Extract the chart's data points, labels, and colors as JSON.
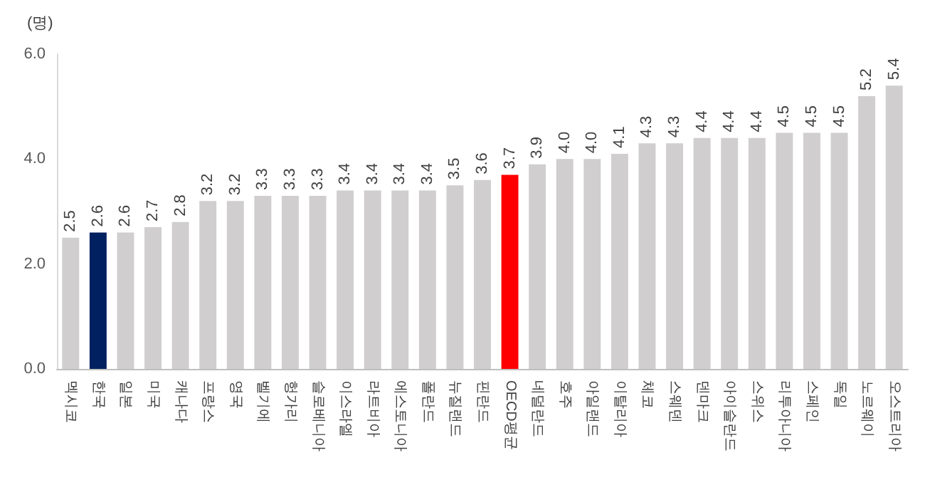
{
  "chart_data": {
    "type": "bar",
    "ylabel": "(명)",
    "categories": [
      "멕시코",
      "한국",
      "일본",
      "미국",
      "캐나다",
      "프랑스",
      "영국",
      "벨기에",
      "헝가리",
      "슬로베니아",
      "이스라엘",
      "라트비아",
      "에스토니아",
      "폴란드",
      "뉴질랜드",
      "핀란드",
      "OECD평균",
      "네덜란드",
      "호주",
      "아일랜드",
      "이탈리아",
      "체코",
      "스웨덴",
      "덴마크",
      "아이슬란드",
      "스위스",
      "리투아니아",
      "스페인",
      "독일",
      "노르웨이",
      "오스트리아"
    ],
    "values": [
      2.5,
      2.6,
      2.6,
      2.7,
      2.8,
      3.2,
      3.2,
      3.3,
      3.3,
      3.3,
      3.4,
      3.4,
      3.4,
      3.4,
      3.5,
      3.6,
      3.7,
      3.9,
      4.0,
      4.0,
      4.1,
      4.3,
      4.3,
      4.4,
      4.4,
      4.4,
      4.5,
      4.5,
      4.5,
      5.2,
      5.4
    ],
    "colors": [
      "#d0cece",
      "#002060",
      "#d0cece",
      "#d0cece",
      "#d0cece",
      "#d0cece",
      "#d0cece",
      "#d0cece",
      "#d0cece",
      "#d0cece",
      "#d0cece",
      "#d0cece",
      "#d0cece",
      "#d0cece",
      "#d0cece",
      "#d0cece",
      "#ff0000",
      "#d0cece",
      "#d0cece",
      "#d0cece",
      "#d0cece",
      "#d0cece",
      "#d0cece",
      "#d0cece",
      "#d0cece",
      "#d0cece",
      "#d0cece",
      "#d0cece",
      "#d0cece",
      "#d0cece",
      "#d0cece"
    ],
    "ylim": [
      0,
      6
    ],
    "yticks": [
      {
        "value": 0,
        "label": "0.0"
      },
      {
        "value": 2,
        "label": "2.0"
      },
      {
        "value": 4,
        "label": "4.0"
      },
      {
        "value": 6,
        "label": "6.0"
      }
    ],
    "value_labels": [
      "2.5",
      "2.6",
      "2.6",
      "2.7",
      "2.8",
      "3.2",
      "3.2",
      "3.3",
      "3.3",
      "3.3",
      "3.4",
      "3.4",
      "3.4",
      "3.4",
      "3.5",
      "3.6",
      "3.7",
      "3.9",
      "4.0",
      "4.0",
      "4.1",
      "4.3",
      "4.3",
      "4.4",
      "4.4",
      "4.4",
      "4.5",
      "4.5",
      "4.5",
      "5.2",
      "5.4"
    ],
    "grid": false
  }
}
